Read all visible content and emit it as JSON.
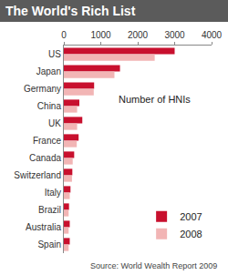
{
  "chart_data": {
    "type": "bar",
    "title": "The World's Rich List",
    "orientation": "horizontal",
    "categories": [
      "US",
      "Japan",
      "Germany",
      "China",
      "UK",
      "France",
      "Canada",
      "Switzerland",
      "Italy",
      "Brazil",
      "Australia",
      "Spain"
    ],
    "series": [
      {
        "name": "2007",
        "color": "#c8102e",
        "values": [
          3000,
          1520,
          820,
          420,
          500,
          400,
          280,
          230,
          180,
          140,
          160,
          160
        ]
      },
      {
        "name": "2008",
        "color": "#f2b5b5",
        "values": [
          2460,
          1370,
          810,
          360,
          360,
          350,
          240,
          220,
          160,
          130,
          130,
          130
        ]
      }
    ],
    "xlim": [
      0,
      4000
    ],
    "xticks": [
      0,
      1000,
      2000,
      3000,
      4000
    ],
    "annotations": [
      "Number of HNIs",
      "Source: World Wealth Report 2009"
    ],
    "legend": "lower right",
    "grid": false
  }
}
